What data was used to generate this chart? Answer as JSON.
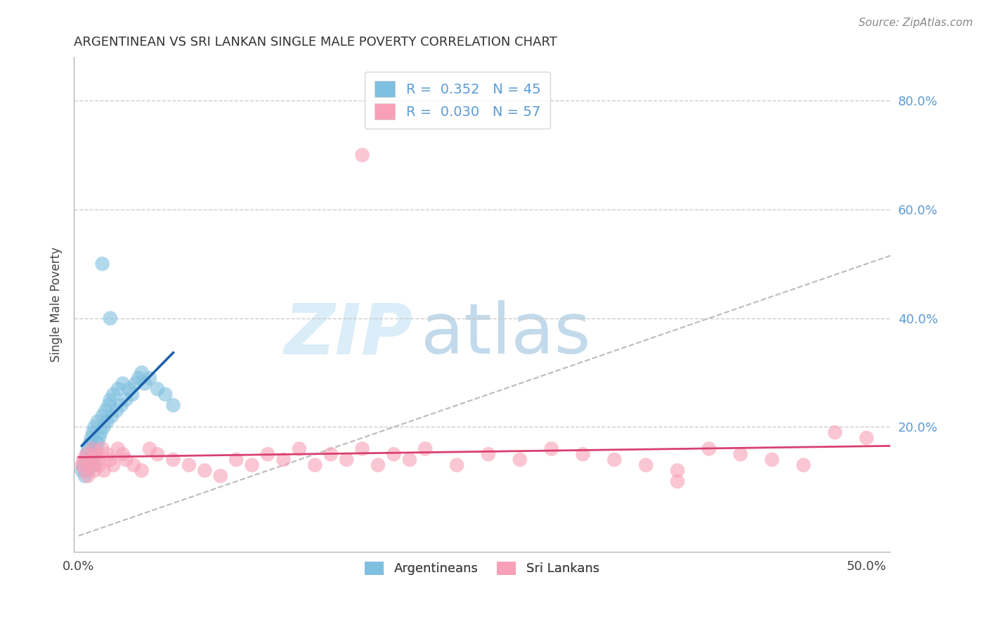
{
  "title": "ARGENTINEAN VS SRI LANKAN SINGLE MALE POVERTY CORRELATION CHART",
  "source": "Source: ZipAtlas.com",
  "ylabel": "Single Male Poverty",
  "blue_color": "#7fbfdf",
  "pink_color": "#f8a0b8",
  "reg_blue_color": "#1a5fa8",
  "reg_pink_color": "#d94070",
  "diag_color": "#bbbbbb",
  "grid_color": "#cccccc",
  "R_blue": 0.352,
  "N_blue": 45,
  "R_pink": 0.03,
  "N_pink": 57,
  "legend_label1": "Argentineans",
  "legend_label2": "Sri Lankans",
  "xlim": [
    -0.003,
    0.515
  ],
  "ylim": [
    -0.03,
    0.88
  ],
  "xticks": [
    0.0,
    0.1,
    0.2,
    0.3,
    0.4,
    0.5
  ],
  "xtick_labels": [
    "0.0%",
    "",
    "",
    "",
    "",
    "50.0%"
  ],
  "yticks": [
    0.0,
    0.2,
    0.4,
    0.6,
    0.8
  ],
  "ytick_labels": [
    "",
    "20.0%",
    "40.0%",
    "60.0%",
    "80.0%"
  ],
  "scatter_size": 220,
  "scatter_alpha": 0.6,
  "arg_x": [
    0.002,
    0.003,
    0.004,
    0.005,
    0.005,
    0.006,
    0.006,
    0.007,
    0.007,
    0.008,
    0.008,
    0.009,
    0.009,
    0.01,
    0.01,
    0.011,
    0.012,
    0.012,
    0.013,
    0.014,
    0.015,
    0.016,
    0.017,
    0.018,
    0.019,
    0.02,
    0.021,
    0.022,
    0.024,
    0.025,
    0.027,
    0.028,
    0.03,
    0.032,
    0.034,
    0.036,
    0.038,
    0.04,
    0.042,
    0.045,
    0.05,
    0.055,
    0.06,
    0.015,
    0.02
  ],
  "arg_y": [
    0.12,
    0.13,
    0.11,
    0.14,
    0.15,
    0.12,
    0.16,
    0.13,
    0.17,
    0.14,
    0.18,
    0.15,
    0.19,
    0.13,
    0.2,
    0.16,
    0.17,
    0.21,
    0.18,
    0.19,
    0.22,
    0.2,
    0.23,
    0.21,
    0.24,
    0.25,
    0.22,
    0.26,
    0.23,
    0.27,
    0.24,
    0.28,
    0.25,
    0.27,
    0.26,
    0.28,
    0.29,
    0.3,
    0.28,
    0.29,
    0.27,
    0.26,
    0.24,
    0.5,
    0.4
  ],
  "sl_x": [
    0.002,
    0.003,
    0.004,
    0.005,
    0.006,
    0.007,
    0.008,
    0.009,
    0.01,
    0.011,
    0.012,
    0.013,
    0.015,
    0.016,
    0.018,
    0.02,
    0.022,
    0.025,
    0.028,
    0.03,
    0.035,
    0.04,
    0.045,
    0.05,
    0.06,
    0.07,
    0.08,
    0.09,
    0.1,
    0.11,
    0.12,
    0.13,
    0.14,
    0.15,
    0.16,
    0.17,
    0.18,
    0.19,
    0.2,
    0.21,
    0.22,
    0.24,
    0.26,
    0.28,
    0.3,
    0.32,
    0.34,
    0.36,
    0.38,
    0.4,
    0.42,
    0.44,
    0.46,
    0.48,
    0.5,
    0.18,
    0.38
  ],
  "sl_y": [
    0.13,
    0.14,
    0.12,
    0.15,
    0.11,
    0.14,
    0.13,
    0.16,
    0.12,
    0.15,
    0.14,
    0.13,
    0.16,
    0.12,
    0.15,
    0.14,
    0.13,
    0.16,
    0.15,
    0.14,
    0.13,
    0.12,
    0.16,
    0.15,
    0.14,
    0.13,
    0.12,
    0.11,
    0.14,
    0.13,
    0.15,
    0.14,
    0.16,
    0.13,
    0.15,
    0.14,
    0.16,
    0.13,
    0.15,
    0.14,
    0.16,
    0.13,
    0.15,
    0.14,
    0.16,
    0.15,
    0.14,
    0.13,
    0.12,
    0.16,
    0.15,
    0.14,
    0.13,
    0.19,
    0.18,
    0.7,
    0.1
  ]
}
